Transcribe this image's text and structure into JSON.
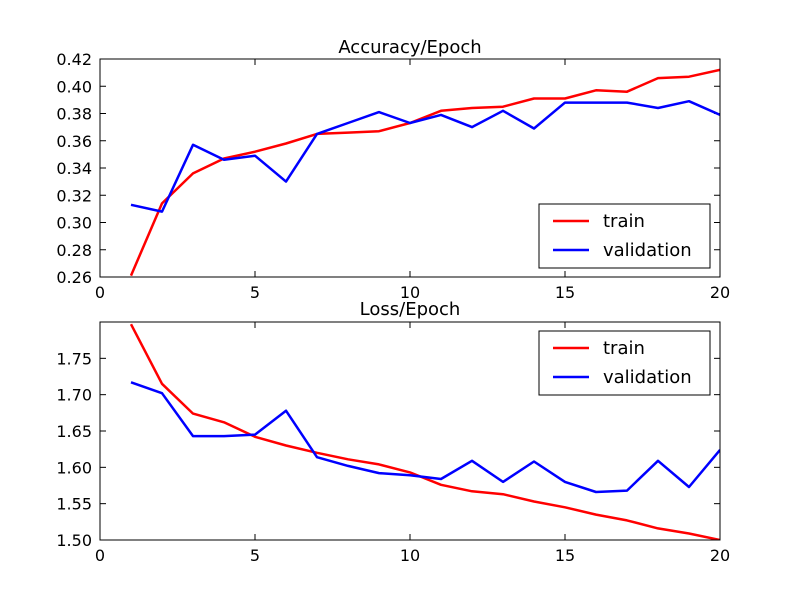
{
  "chart_data": [
    {
      "type": "line",
      "title": "Accuracy/Epoch",
      "xlabel": "",
      "ylabel": "",
      "xlim": [
        0,
        20
      ],
      "ylim": [
        0.26,
        0.42
      ],
      "x_ticks": [
        0,
        5,
        10,
        15,
        20
      ],
      "x_tick_labels": [
        "0",
        "5",
        "10",
        "15",
        "20"
      ],
      "y_ticks": [
        0.26,
        0.28,
        0.3,
        0.32,
        0.34,
        0.36,
        0.38,
        0.4,
        0.42
      ],
      "y_tick_labels": [
        "0.26",
        "0.28",
        "0.30",
        "0.32",
        "0.34",
        "0.36",
        "0.38",
        "0.40",
        "0.42"
      ],
      "grid": false,
      "legend_position": "lower-right",
      "x": [
        1,
        2,
        3,
        4,
        5,
        6,
        7,
        8,
        9,
        10,
        11,
        12,
        13,
        14,
        15,
        16,
        17,
        18,
        19,
        20
      ],
      "series": [
        {
          "name": "train",
          "color": "#ff0000",
          "values": [
            0.261,
            0.314,
            0.336,
            0.347,
            0.352,
            0.358,
            0.365,
            0.366,
            0.367,
            0.373,
            0.382,
            0.384,
            0.385,
            0.391,
            0.391,
            0.397,
            0.396,
            0.406,
            0.407,
            0.412
          ]
        },
        {
          "name": "validation",
          "color": "#0000ff",
          "values": [
            0.313,
            0.308,
            0.357,
            0.346,
            0.349,
            0.33,
            0.365,
            0.373,
            0.381,
            0.373,
            0.379,
            0.37,
            0.382,
            0.369,
            0.388,
            0.388,
            0.388,
            0.384,
            0.389,
            0.379
          ]
        }
      ]
    },
    {
      "type": "line",
      "title": "Loss/Epoch",
      "xlabel": "",
      "ylabel": "",
      "xlim": [
        0,
        20
      ],
      "ylim": [
        1.5,
        1.8
      ],
      "x_ticks": [
        0,
        5,
        10,
        15,
        20
      ],
      "x_tick_labels": [
        "0",
        "5",
        "10",
        "15",
        "20"
      ],
      "y_ticks": [
        1.5,
        1.55,
        1.6,
        1.65,
        1.7,
        1.75
      ],
      "y_tick_labels": [
        "1.50",
        "1.55",
        "1.60",
        "1.65",
        "1.70",
        "1.75"
      ],
      "grid": false,
      "legend_position": "upper-right",
      "x": [
        1,
        2,
        3,
        4,
        5,
        6,
        7,
        8,
        9,
        10,
        11,
        12,
        13,
        14,
        15,
        16,
        17,
        18,
        19,
        20
      ],
      "series": [
        {
          "name": "train",
          "color": "#ff0000",
          "values": [
            1.797,
            1.715,
            1.674,
            1.662,
            1.642,
            1.63,
            1.62,
            1.611,
            1.604,
            1.593,
            1.576,
            1.567,
            1.563,
            1.553,
            1.545,
            1.535,
            1.527,
            1.516,
            1.509,
            1.5
          ]
        },
        {
          "name": "validation",
          "color": "#0000ff",
          "values": [
            1.717,
            1.702,
            1.643,
            1.643,
            1.645,
            1.678,
            1.614,
            1.602,
            1.592,
            1.589,
            1.584,
            1.609,
            1.58,
            1.608,
            1.58,
            1.566,
            1.568,
            1.609,
            1.573,
            1.624
          ]
        }
      ]
    }
  ]
}
